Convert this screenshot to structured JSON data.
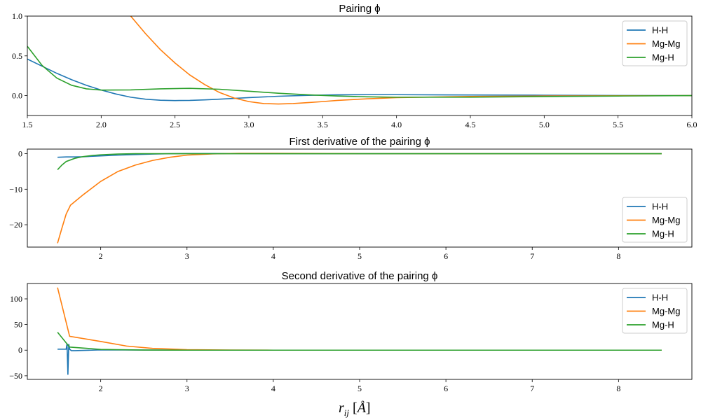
{
  "chart_data": [
    {
      "type": "line",
      "title": "Pairing ϕ",
      "xlabel": "",
      "ylabel": "",
      "xlim": [
        1.5,
        6.0
      ],
      "ylim": [
        -0.25,
        1.0
      ],
      "xticks": [
        "1.5",
        "2.0",
        "2.5",
        "3.0",
        "3.5",
        "4.0",
        "4.5",
        "5.0",
        "5.5",
        "6.0"
      ],
      "yticks": [
        "0.0",
        "0.5",
        "1.0"
      ],
      "legend": "top-right",
      "series": [
        {
          "name": "H-H",
          "color": "#1f77b4",
          "x": [
            1.5,
            1.6,
            1.7,
            1.8,
            1.9,
            2.0,
            2.1,
            2.2,
            2.3,
            2.4,
            2.5,
            2.6,
            2.7,
            2.8,
            2.9,
            3.0,
            3.2,
            3.4,
            3.6,
            3.8,
            4.0,
            4.5,
            5.0,
            5.5,
            6.0
          ],
          "y": [
            0.46,
            0.37,
            0.28,
            0.2,
            0.13,
            0.07,
            0.02,
            -0.02,
            -0.045,
            -0.058,
            -0.062,
            -0.06,
            -0.054,
            -0.045,
            -0.035,
            -0.025,
            -0.008,
            0.004,
            0.01,
            0.012,
            0.012,
            0.008,
            0.005,
            0.002,
            0.0
          ]
        },
        {
          "name": "Mg-Mg",
          "color": "#ff7f0e",
          "x": [
            2.2,
            2.3,
            2.4,
            2.5,
            2.6,
            2.7,
            2.8,
            2.9,
            3.0,
            3.1,
            3.2,
            3.3,
            3.4,
            3.5,
            3.6,
            3.8,
            4.0,
            4.5,
            5.0,
            5.5,
            6.0
          ],
          "y": [
            1.0,
            0.78,
            0.58,
            0.41,
            0.26,
            0.14,
            0.04,
            -0.03,
            -0.075,
            -0.1,
            -0.105,
            -0.1,
            -0.088,
            -0.075,
            -0.06,
            -0.04,
            -0.025,
            -0.01,
            -0.005,
            -0.002,
            0.0
          ]
        },
        {
          "name": "Mg-H",
          "color": "#2ca02c",
          "x": [
            1.5,
            1.6,
            1.7,
            1.8,
            1.9,
            2.0,
            2.2,
            2.4,
            2.6,
            2.8,
            3.0,
            3.2,
            3.4,
            3.6,
            3.8,
            4.0,
            4.5,
            5.0,
            5.5,
            6.0
          ],
          "y": [
            0.62,
            0.38,
            0.22,
            0.13,
            0.085,
            0.07,
            0.072,
            0.085,
            0.092,
            0.08,
            0.055,
            0.03,
            0.01,
            -0.005,
            -0.015,
            -0.02,
            -0.02,
            -0.012,
            -0.005,
            0.0
          ]
        }
      ]
    },
    {
      "type": "line",
      "title": "First derivative of the pairing ϕ",
      "xlabel": "",
      "ylabel": "",
      "xlim": [
        1.15,
        8.85
      ],
      "ylim": [
        -26.3,
        1.3
      ],
      "xticks": [
        "2",
        "3",
        "4",
        "5",
        "6",
        "7",
        "8"
      ],
      "yticks": [
        "0",
        "−10",
        "−20"
      ],
      "legend": "bottom-right",
      "series": [
        {
          "name": "H-H",
          "color": "#1f77b4",
          "x": [
            1.5,
            1.6,
            1.7,
            1.8,
            2.0,
            2.2,
            2.4,
            2.6,
            2.8,
            3.0,
            3.5,
            4.0,
            5.0,
            6.0,
            7.0,
            8.0,
            8.5
          ],
          "y": [
            -1.0,
            -0.9,
            -0.9,
            -0.85,
            -0.6,
            -0.4,
            -0.25,
            -0.1,
            0.0,
            0.05,
            0.05,
            0.02,
            0.0,
            0.0,
            0.0,
            0.0,
            0.0
          ]
        },
        {
          "name": "Mg-Mg",
          "color": "#ff7f0e",
          "x": [
            1.5,
            1.55,
            1.6,
            1.65,
            1.8,
            2.0,
            2.2,
            2.4,
            2.6,
            2.8,
            3.0,
            3.3,
            3.6,
            4.0,
            5.0,
            6.0,
            7.0,
            8.0,
            8.5
          ],
          "y": [
            -25.2,
            -21.0,
            -17.0,
            -14.5,
            -11.5,
            -7.8,
            -5.0,
            -3.2,
            -1.9,
            -1.0,
            -0.4,
            -0.05,
            0.1,
            0.1,
            0.02,
            0.0,
            0.0,
            0.0,
            0.0
          ]
        },
        {
          "name": "Mg-H",
          "color": "#2ca02c",
          "x": [
            1.5,
            1.55,
            1.6,
            1.7,
            1.8,
            1.9,
            2.0,
            2.2,
            2.4,
            2.6,
            3.0,
            3.5,
            4.0,
            5.0,
            6.0,
            7.0,
            8.0,
            8.5
          ],
          "y": [
            -4.5,
            -3.2,
            -2.2,
            -1.3,
            -0.8,
            -0.5,
            -0.3,
            -0.1,
            0.0,
            0.0,
            0.0,
            0.0,
            0.0,
            0.0,
            0.0,
            0.0,
            0.0,
            0.0
          ]
        }
      ]
    },
    {
      "type": "line",
      "title": "Second derivative of the pairing ϕ",
      "xlabel": "r_ij [Å]",
      "ylabel": "",
      "xlim": [
        1.15,
        8.85
      ],
      "ylim": [
        -57,
        130
      ],
      "xticks": [
        "2",
        "3",
        "4",
        "5",
        "6",
        "7",
        "8"
      ],
      "yticks": [
        "100",
        "50",
        "0",
        "−50"
      ],
      "legend": "top-right",
      "series": [
        {
          "name": "H-H",
          "color": "#1f77b4",
          "x": [
            1.5,
            1.6,
            1.61,
            1.62,
            1.63,
            1.64,
            1.66,
            1.7,
            2.0,
            2.5,
            3.0,
            4.0,
            5.0,
            6.0,
            7.0,
            8.0,
            8.5
          ],
          "y": [
            2.0,
            2.0,
            13.0,
            -48.0,
            12.0,
            2.0,
            -1.0,
            -1.0,
            0.5,
            0.3,
            0.0,
            0.0,
            0.0,
            0.0,
            0.0,
            0.0,
            0.0
          ]
        },
        {
          "name": "Mg-Mg",
          "color": "#ff7f0e",
          "x": [
            1.5,
            1.64,
            2.0,
            2.3,
            2.6,
            3.0,
            3.5,
            4.0,
            5.0,
            6.0,
            7.0,
            8.0,
            8.5
          ],
          "y": [
            122.0,
            27.0,
            17.0,
            8.0,
            3.5,
            1.0,
            0.3,
            0.0,
            0.0,
            0.0,
            0.0,
            0.0,
            0.0
          ]
        },
        {
          "name": "Mg-H",
          "color": "#2ca02c",
          "x": [
            1.5,
            1.64,
            2.0,
            2.5,
            3.0,
            4.0,
            5.0,
            6.0,
            7.0,
            8.0,
            8.5
          ],
          "y": [
            35.0,
            6.0,
            1.5,
            0.3,
            0.0,
            0.0,
            0.0,
            0.0,
            0.0,
            0.0,
            0.0
          ]
        }
      ]
    }
  ]
}
